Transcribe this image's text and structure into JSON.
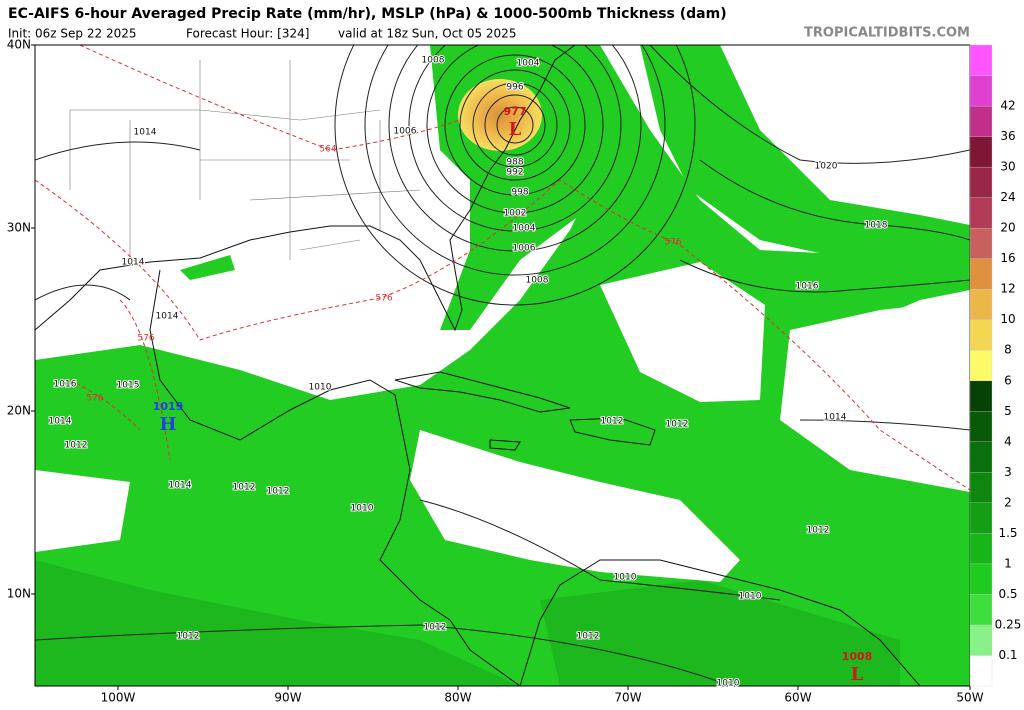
{
  "header": {
    "title": "EC-AIFS 6-hour Averaged Precip Rate (mm/hr), MSLP (hPa) & 1000-500mb Thickness (dam)",
    "init": "Init: 06z Sep 22 2025",
    "forecast": "Forecast Hour: [324]",
    "valid": "valid at 18z Sun, Oct 05 2025",
    "credit": "TROPICALTIDBITS.COM"
  },
  "map": {
    "lat_labels": [
      "40N",
      "30N",
      "20N",
      "10N"
    ],
    "lon_labels": [
      "100W",
      "90W",
      "80W",
      "70W",
      "60W",
      "50W"
    ],
    "isobar_labels": [
      "1008",
      "1004",
      "996",
      "1006",
      "988",
      "992",
      "998",
      "1002",
      "1004",
      "1006",
      "1008",
      "1014",
      "1020",
      "1018",
      "1016",
      "1014",
      "1014",
      "1010",
      "1016",
      "1015",
      "1014",
      "1012",
      "1014",
      "1012",
      "1012",
      "1010",
      "1012",
      "1012",
      "1014",
      "1012",
      "1010",
      "1010",
      "1012",
      "1012",
      "1012",
      "1010"
    ],
    "thickness_labels": [
      "564",
      "576",
      "576",
      "576",
      "576"
    ],
    "centers": [
      {
        "symbol": "L",
        "label": "977"
      },
      {
        "symbol": "H",
        "label": "1019"
      },
      {
        "symbol": "L",
        "label": "1008"
      }
    ]
  },
  "colorbar": {
    "labels": [
      "0.1",
      "0.25",
      "0.5",
      "1",
      "1.5",
      "2",
      "3",
      "4",
      "5",
      "6",
      "8",
      "10",
      "12",
      "16",
      "20",
      "24",
      "30",
      "36",
      "42"
    ],
    "colors": [
      "#ffffff",
      "#8af08a",
      "#3fde3f",
      "#1ecb1e",
      "#17b517",
      "#139e13",
      "#0f870f",
      "#0b700b",
      "#085a08",
      "#064206",
      "#fbfb6a",
      "#f3d653",
      "#ecb74a",
      "#e09140",
      "#c86060",
      "#b23c58",
      "#9a2648",
      "#7e1636",
      "#c0308a",
      "#e040d0",
      "#ff55ff"
    ]
  }
}
